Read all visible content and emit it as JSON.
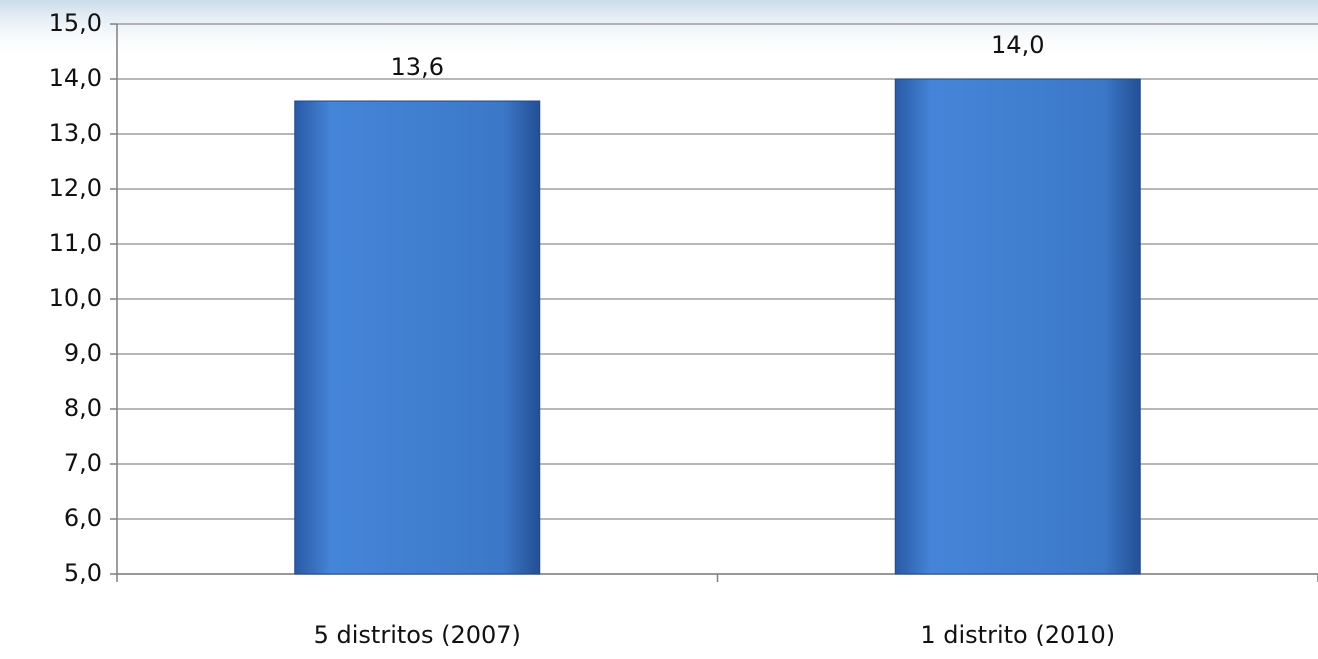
{
  "chart_data": {
    "type": "bar",
    "categories": [
      "5 distritos (2007)",
      "1 distrito (2010)"
    ],
    "values": [
      13.6,
      14.0
    ],
    "value_labels": [
      "13,6",
      "14,0"
    ],
    "color": "#3f7bd0",
    "ylim": [
      5,
      15
    ],
    "yticks": [
      {
        "value": 5,
        "label": "5,0"
      },
      {
        "value": 6,
        "label": "6,0"
      },
      {
        "value": 7,
        "label": "7,0"
      },
      {
        "value": 8,
        "label": "8,0"
      },
      {
        "value": 9,
        "label": "9,0"
      },
      {
        "value": 10,
        "label": "10,0"
      },
      {
        "value": 11,
        "label": "11,0"
      },
      {
        "value": 12,
        "label": "12,0"
      },
      {
        "value": 13,
        "label": "13,0"
      },
      {
        "value": 14,
        "label": "14,0"
      },
      {
        "value": 15,
        "label": "15,0"
      }
    ],
    "grid": true
  }
}
